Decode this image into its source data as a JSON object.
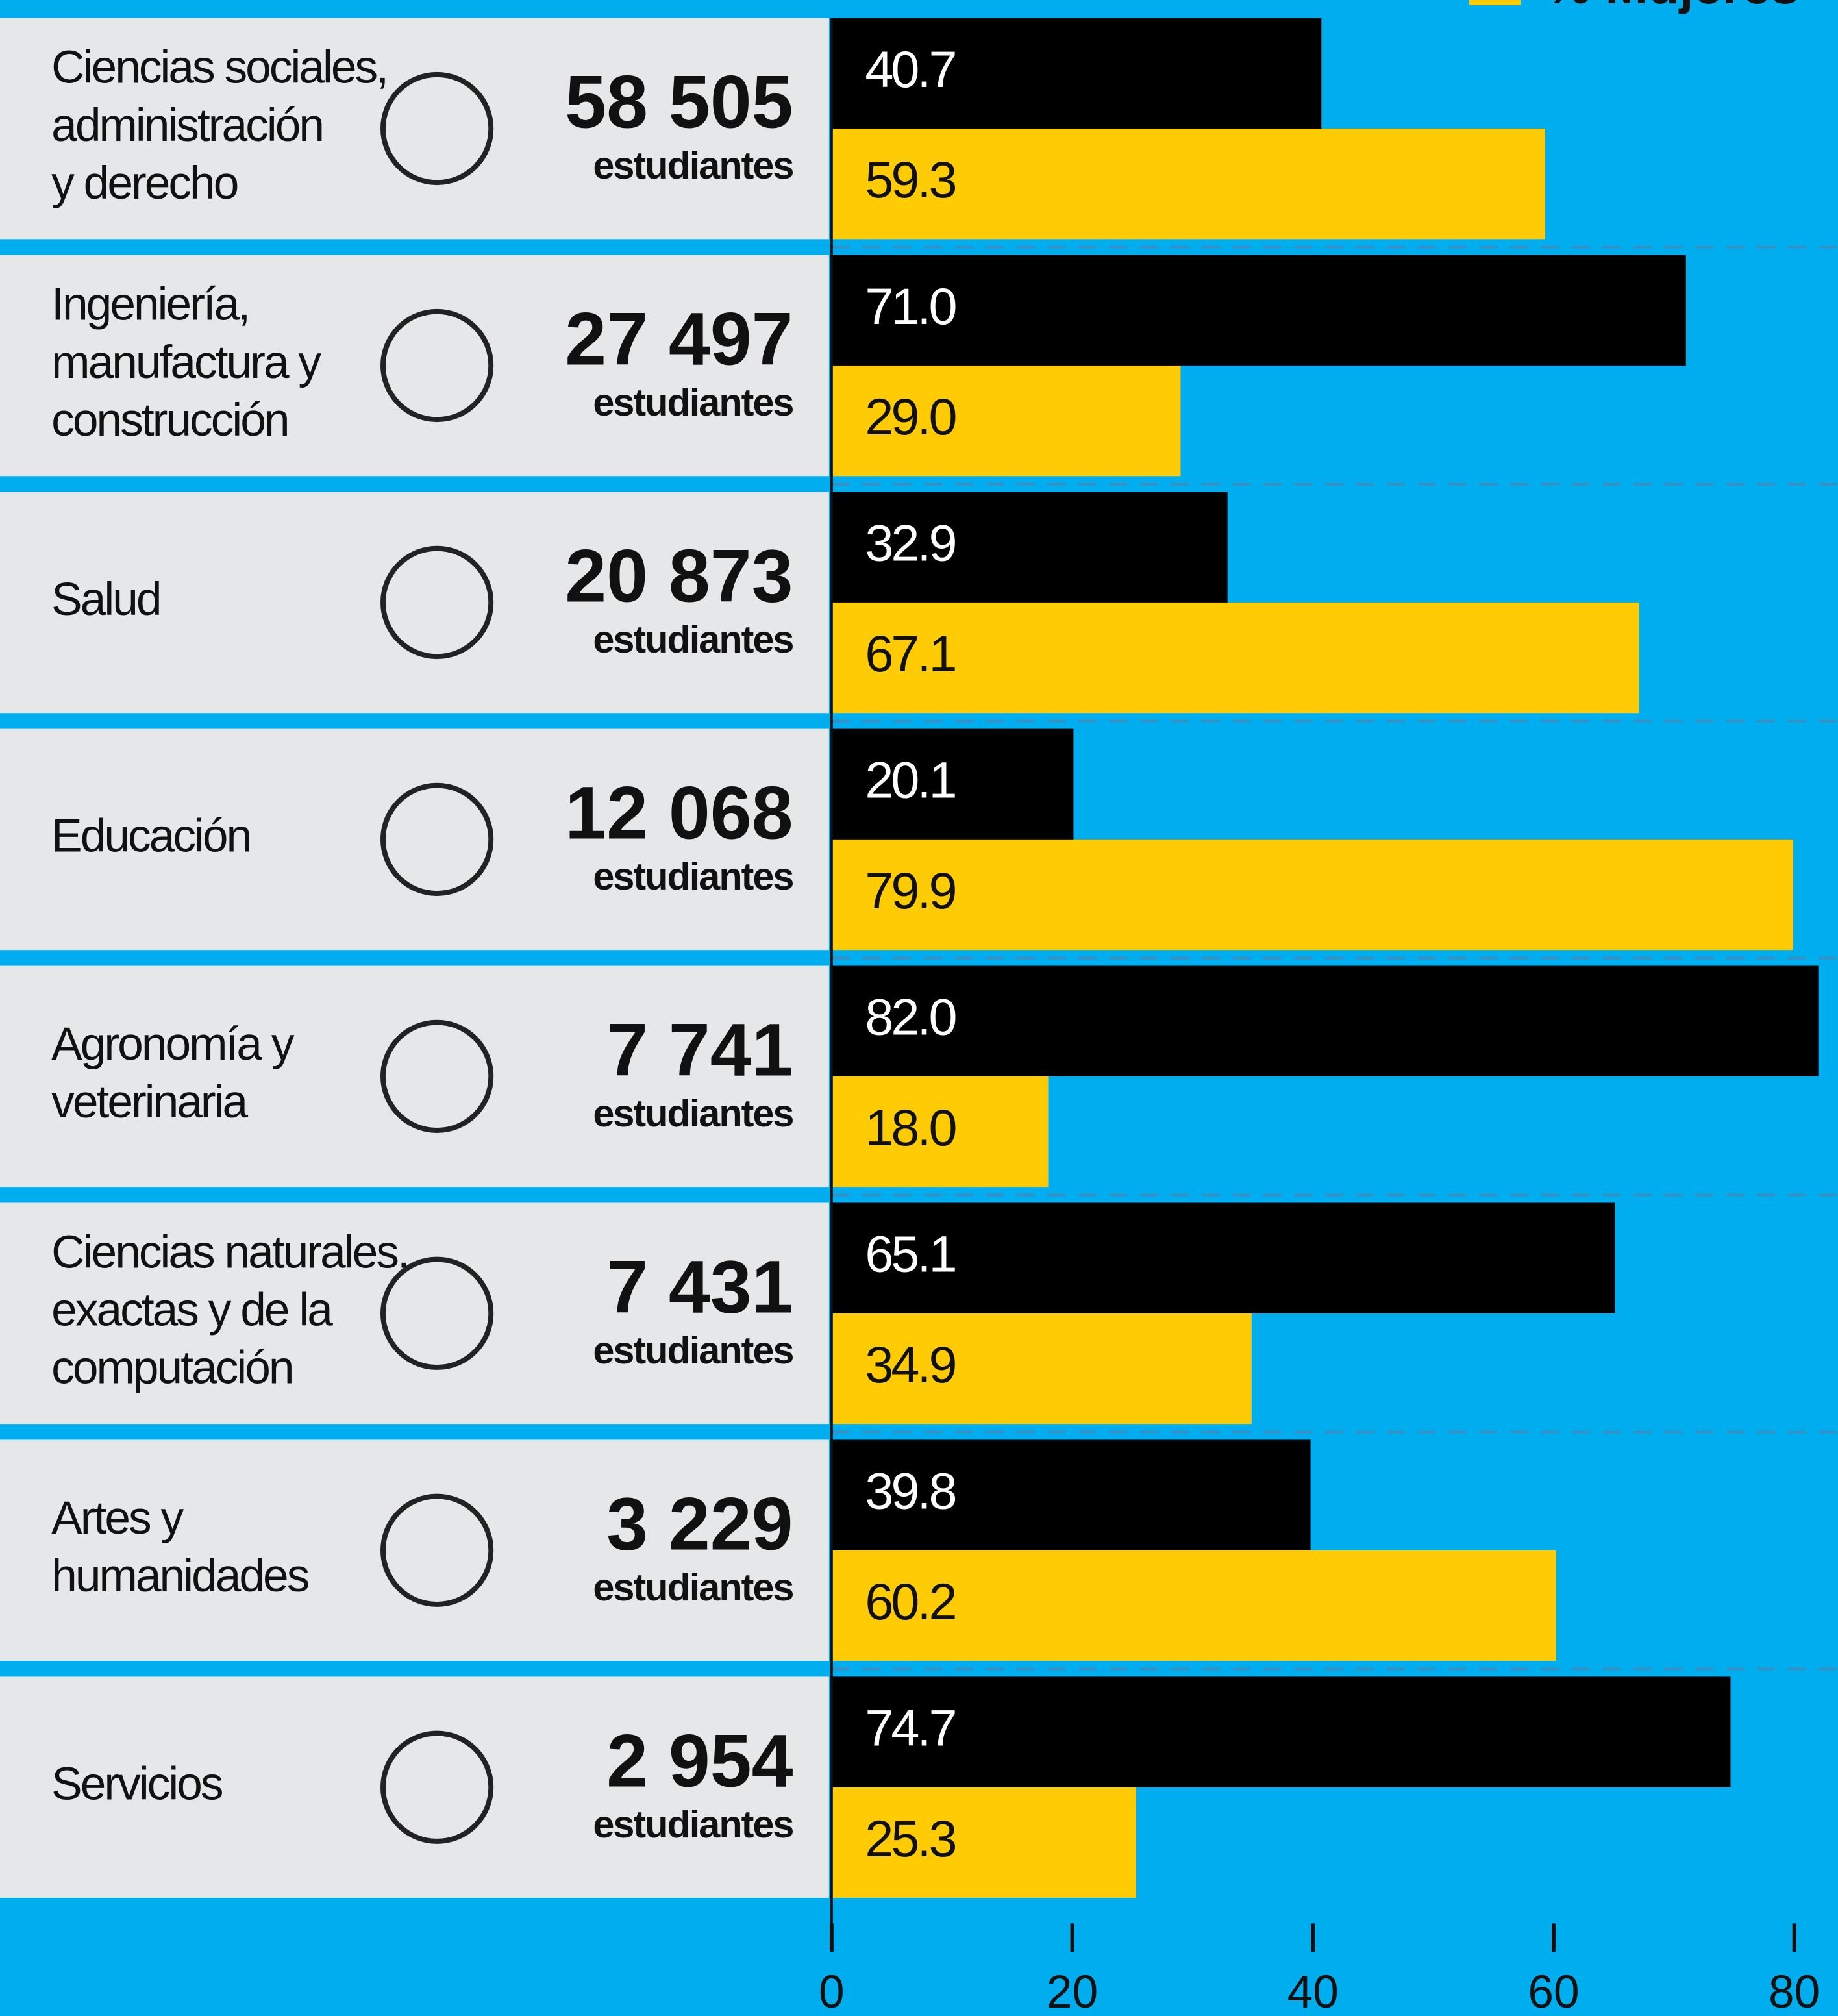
{
  "chart_data": {
    "type": "bar",
    "orientation": "horizontal",
    "categories": [
      [
        "Ciencias sociales,",
        "administración",
        "y derecho"
      ],
      [
        "Ingeniería,",
        "manufactura y",
        "construcción"
      ],
      [
        "Salud"
      ],
      [
        "Educación"
      ],
      [
        "Agronomía y",
        "veterinaria"
      ],
      [
        "Ciencias naturales,",
        "exactas y de la",
        "computación"
      ],
      [
        "Artes y",
        "humanidades"
      ],
      [
        "Servicios"
      ]
    ],
    "students": [
      {
        "value": 58505,
        "label": "58 505"
      },
      {
        "value": 27497,
        "label": "27 497"
      },
      {
        "value": 20873,
        "label": "20 873"
      },
      {
        "value": 12068,
        "label": "12 068"
      },
      {
        "value": 7741,
        "label": "7 741"
      },
      {
        "value": 7431,
        "label": "7 431"
      },
      {
        "value": 3229,
        "label": "3 229"
      },
      {
        "value": 2954,
        "label": "2 954"
      }
    ],
    "students_unit": "estudiantes",
    "series": [
      {
        "color": "#000000",
        "values": [
          40.7,
          71.0,
          32.9,
          20.1,
          82.0,
          65.1,
          39.8,
          74.7
        ],
        "value_labels": [
          "40.7",
          "71.0",
          "32.9",
          "20.1",
          "82.0",
          "65.1",
          "39.8",
          "74.7"
        ]
      },
      {
        "name": "% Mujeres",
        "color": "#ffcb05",
        "values": [
          59.3,
          29.0,
          67.1,
          79.9,
          18.0,
          34.9,
          60.2,
          25.3
        ],
        "value_labels": [
          "59.3",
          "29.0",
          "67.1",
          "79.9",
          "18.0",
          "34.9",
          "60.2",
          "25.3"
        ]
      }
    ],
    "xlim": [
      0,
      80
    ],
    "xticks": [
      0,
      20,
      40,
      60,
      80
    ],
    "legend": "top-right"
  }
}
